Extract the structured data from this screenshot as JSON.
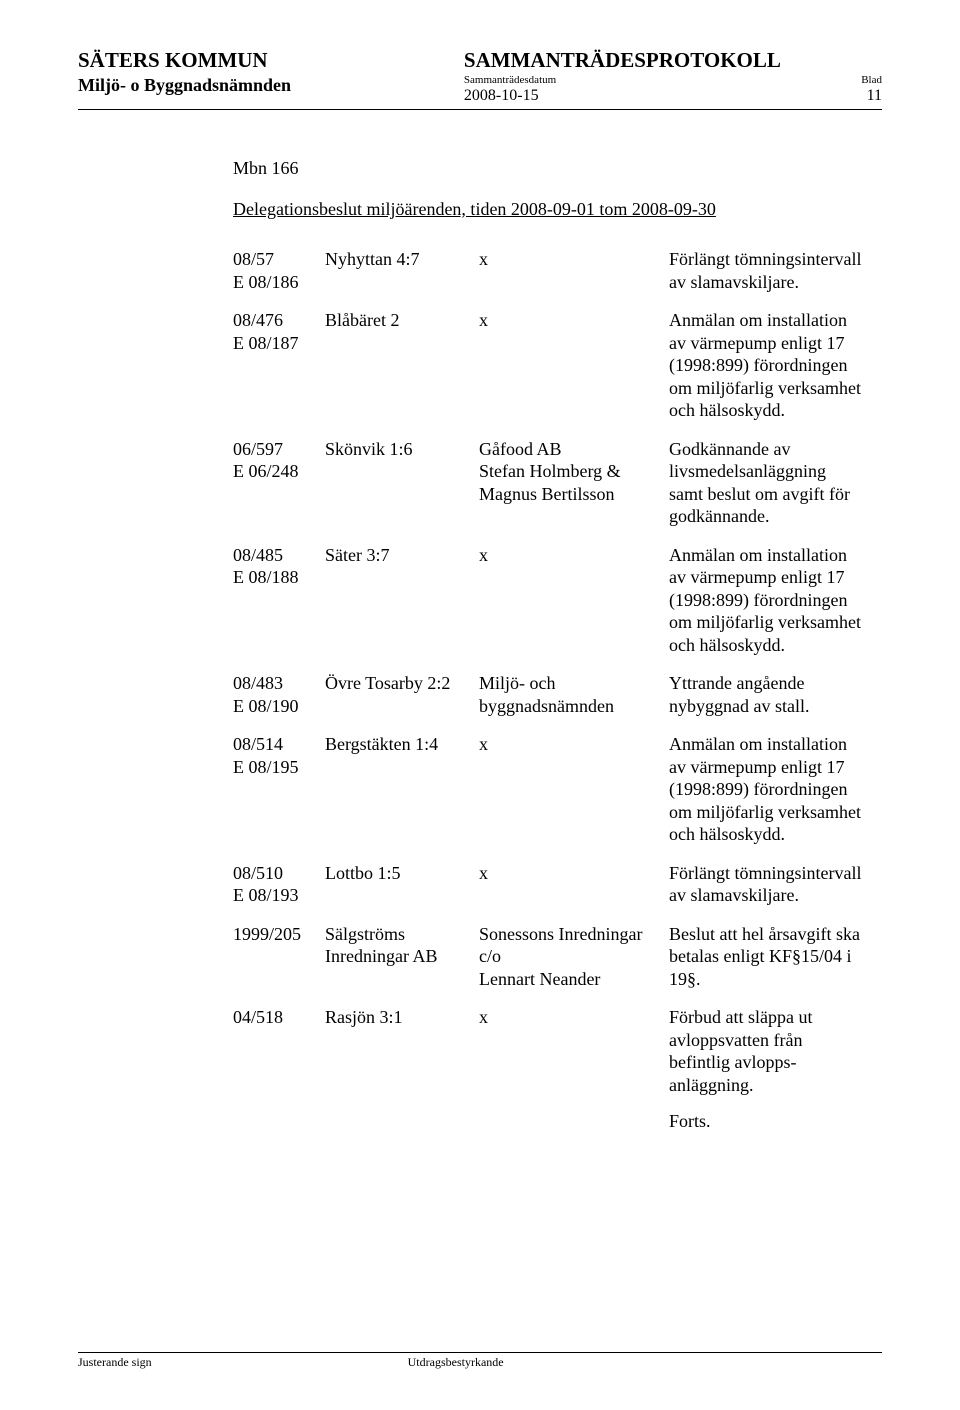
{
  "header": {
    "org_name": "SÄTERS KOMMUN",
    "committee": "Miljö- o Byggnadsnämnden",
    "protocol_title": "SAMMANTRÄDESPROTOKOLL",
    "sub_date_label": "Sammanträdesdatum",
    "sub_page_label": "Blad",
    "date": "2008-10-15",
    "page": "11"
  },
  "section": {
    "mbn": "Mbn 166",
    "title": "Delegationsbeslut miljöärenden, tiden 2008-09-01 tom 2008-09-30"
  },
  "rows": [
    {
      "c1": "08/57\nE 08/186",
      "c2": "Nyhyttan 4:7",
      "c3": "x",
      "c4": "Förlängt tömningsintervall av slamavskiljare."
    },
    {
      "c1": "08/476\nE 08/187",
      "c2": "Blåbäret 2",
      "c3": "x",
      "c4": "Anmälan om installation av värmepump enligt 17 (1998:899) förordningen om miljöfarlig verksamhet och hälsoskydd."
    },
    {
      "c1": "06/597\nE 06/248",
      "c2": "Skönvik 1:6",
      "c3": "Gåfood AB\nStefan Holmberg & Magnus Bertilsson",
      "c4": "Godkännande av livsmedelsanläggning samt beslut om avgift för godkännande."
    },
    {
      "c1": "08/485\nE 08/188",
      "c2": "Säter 3:7",
      "c3": "x",
      "c4": "Anmälan om installation av värmepump enligt 17 (1998:899) förordningen om miljöfarlig verksamhet och hälsoskydd."
    },
    {
      "c1": "08/483\nE 08/190",
      "c2": "Övre Tosarby 2:2",
      "c3": "Miljö- och byggnadsnämnden",
      "c4": "Yttrande angående nybyggnad av stall."
    },
    {
      "c1": "08/514\nE 08/195",
      "c2": "Bergstäkten 1:4",
      "c3": "x",
      "c4": "Anmälan om installation av värmepump enligt 17 (1998:899) förordningen om miljöfarlig verksamhet och hälsoskydd."
    },
    {
      "c1": "08/510\nE 08/193",
      "c2": "Lottbo 1:5",
      "c3": "x",
      "c4": "Förlängt tömningsintervall av slamavskiljare."
    },
    {
      "c1": "1999/205",
      "c2": "Sälgströms Inredningar AB",
      "c3": "Sonessons Inredningar c/o\nLennart Neander",
      "c4": "Beslut att hel årsavgift ska betalas enligt KF§15/04 i 19§."
    },
    {
      "c1": "04/518",
      "c2": "Rasjön 3:1",
      "c3": "x",
      "c4": "Förbud att släppa ut avloppsvatten  från befintlig avlopps-anläggning.\nForts."
    }
  ],
  "footer": {
    "left": "Justerande sign",
    "right": "Utdragsbestyrkande"
  }
}
